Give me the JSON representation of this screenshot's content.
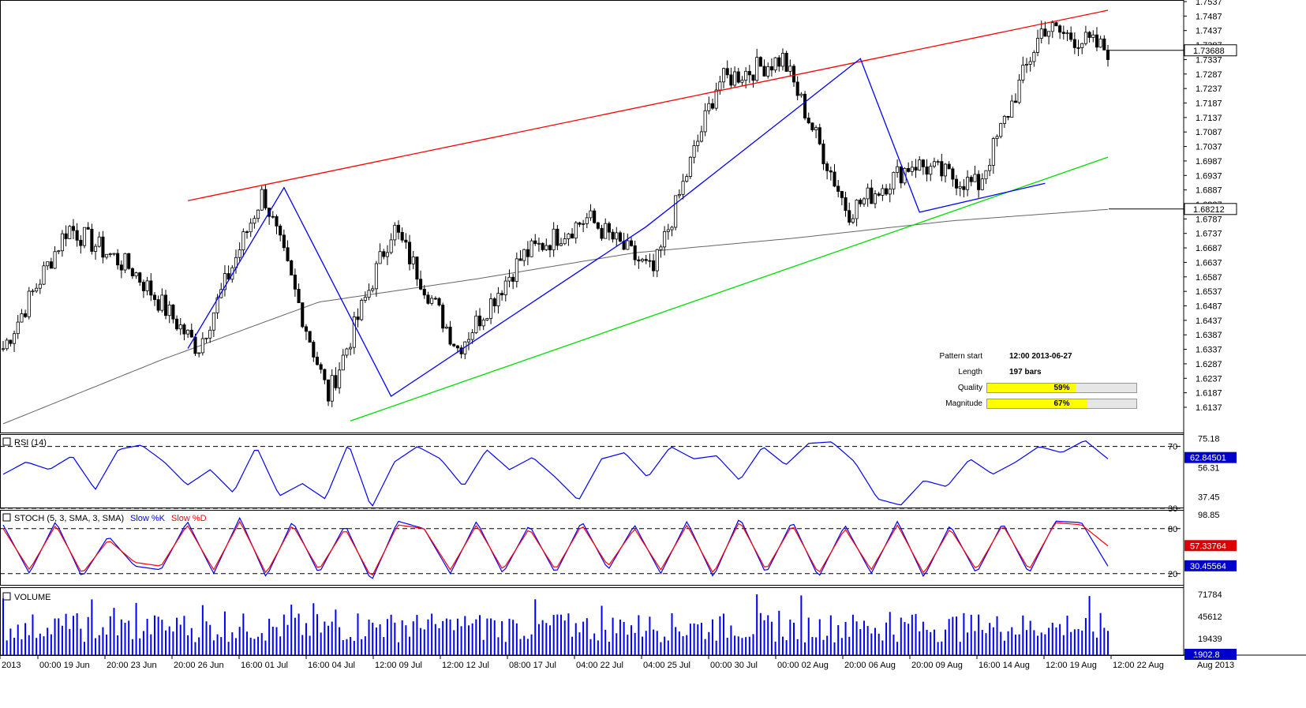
{
  "chart_data": [
    {
      "type": "candlestick",
      "panel": "price",
      "ylim": [
        1.6137,
        1.7537
      ],
      "y_ticks": [
        "1.7537",
        "1.7487",
        "1.7437",
        "1.7387",
        "1.7337",
        "1.7287",
        "1.7237",
        "1.7187",
        "1.7137",
        "1.7087",
        "1.7037",
        "1.6987",
        "1.6937",
        "1.6887",
        "1.6837",
        "1.6787",
        "1.6737",
        "1.6687",
        "1.6637",
        "1.6587",
        "1.6537",
        "1.6487",
        "1.6437",
        "1.6387",
        "1.6337",
        "1.6287",
        "1.6237",
        "1.6187",
        "1.6137"
      ],
      "current_price_label": "1.73688",
      "sma_label": "1.68212",
      "x_labels": [
        "2013",
        "00:00 19 Jun",
        "20:00 23 Jun",
        "20:00 26 Jun",
        "16:00 01 Jul",
        "16:00 04 Jul",
        "12:00 09 Jul",
        "12:00 12 Jul",
        "08:00 17 Jul",
        "04:00 22 Jul",
        "04:00 25 Jul",
        "00:00 30 Jul",
        "00:00 02 Aug",
        "20:00 06 Aug",
        "20:00 09 Aug",
        "16:00 14 Aug",
        "12:00 19 Aug",
        "12:00 22 Aug",
        "Aug 2013"
      ],
      "key_closes": [
        1.634,
        1.676,
        1.661,
        1.634,
        1.688,
        1.6175,
        1.676,
        1.634,
        1.666,
        1.679,
        1.66,
        1.726,
        1.734,
        1.681,
        1.698,
        1.69,
        1.745,
        1.737
      ],
      "sma_path": [
        1.608,
        1.63,
        1.65,
        1.658,
        1.667,
        1.672,
        1.678,
        1.682
      ],
      "pattern": {
        "resistance": [
          1.685,
          1.7507
        ],
        "support": [
          1.609,
          1.7
        ],
        "zigzag": [
          1.634,
          1.6895,
          1.6175,
          1.676,
          1.734,
          1.681,
          1.691
        ]
      },
      "info": {
        "pattern_start_label": "Pattern start",
        "pattern_start_value": "12:00 2013-06-27",
        "length_label": "Length",
        "length_value": "197 bars",
        "quality_label": "Quality",
        "quality_value": 59,
        "quality_text": "59%",
        "magnitude_label": "Magnitude",
        "magnitude_value": 67,
        "magnitude_text": "67%"
      },
      "colors": {
        "resistance": "#ff0000",
        "support": "#00dd00",
        "zigzag": "#0000ff",
        "sma": "#666666",
        "candle": "#000000"
      }
    },
    {
      "type": "line",
      "panel": "rsi",
      "title": "RSI (14)",
      "ylim": [
        30.5,
        78
      ],
      "levels": [
        70,
        30
      ],
      "level_labels": [
        "70",
        "30"
      ],
      "y_ticks": [
        "75.18",
        "56.31",
        "37.45"
      ],
      "current_label": "62.84501",
      "series": [
        {
          "name": "RSI",
          "color": "#0000ff",
          "values": [
            52,
            60,
            55,
            64,
            42,
            68,
            71,
            60,
            45,
            55,
            40,
            70,
            38,
            46,
            36,
            72,
            30,
            60,
            70,
            62,
            44,
            68,
            55,
            63,
            50,
            35,
            62,
            66,
            50,
            70,
            62,
            64,
            48,
            70,
            58,
            72,
            73,
            60,
            36,
            32,
            48,
            44,
            62,
            52,
            60,
            70,
            66,
            74,
            62
          ]
        }
      ]
    },
    {
      "type": "line",
      "panel": "stochastic",
      "title": "STOCH (5, 3, SMA, 3, SMA)",
      "legend": [
        "Slow %K",
        "Slow %D"
      ],
      "ylim": [
        5,
        105
      ],
      "levels": [
        80,
        20
      ],
      "level_labels": [
        "80",
        "20"
      ],
      "y_ticks": [
        "98.85"
      ],
      "current_labels": [
        "57.33764",
        "30.45564"
      ],
      "series": [
        {
          "name": "Slow %K",
          "color": "#0000ff",
          "values": [
            85,
            20,
            90,
            15,
            70,
            30,
            25,
            90,
            20,
            95,
            15,
            90,
            20,
            85,
            10,
            90,
            80,
            20,
            90,
            20,
            85,
            20,
            90,
            25,
            85,
            20,
            90,
            15,
            95,
            20,
            90,
            15,
            85,
            20,
            90,
            15,
            85,
            20,
            88,
            20,
            90,
            88,
            30
          ]
        },
        {
          "name": "Slow %D",
          "color": "#ff0000",
          "values": [
            80,
            25,
            85,
            20,
            65,
            35,
            30,
            85,
            25,
            90,
            20,
            85,
            25,
            80,
            15,
            85,
            80,
            25,
            85,
            25,
            80,
            25,
            85,
            30,
            80,
            25,
            85,
            20,
            90,
            25,
            85,
            20,
            80,
            25,
            85,
            20,
            80,
            25,
            85,
            25,
            88,
            85,
            57
          ]
        }
      ]
    },
    {
      "type": "bar",
      "panel": "volume",
      "title": "VOLUME",
      "y_ticks": [
        "71784",
        "45612",
        "19439"
      ],
      "current_label": "1902.8",
      "color": "#0000ff"
    }
  ]
}
